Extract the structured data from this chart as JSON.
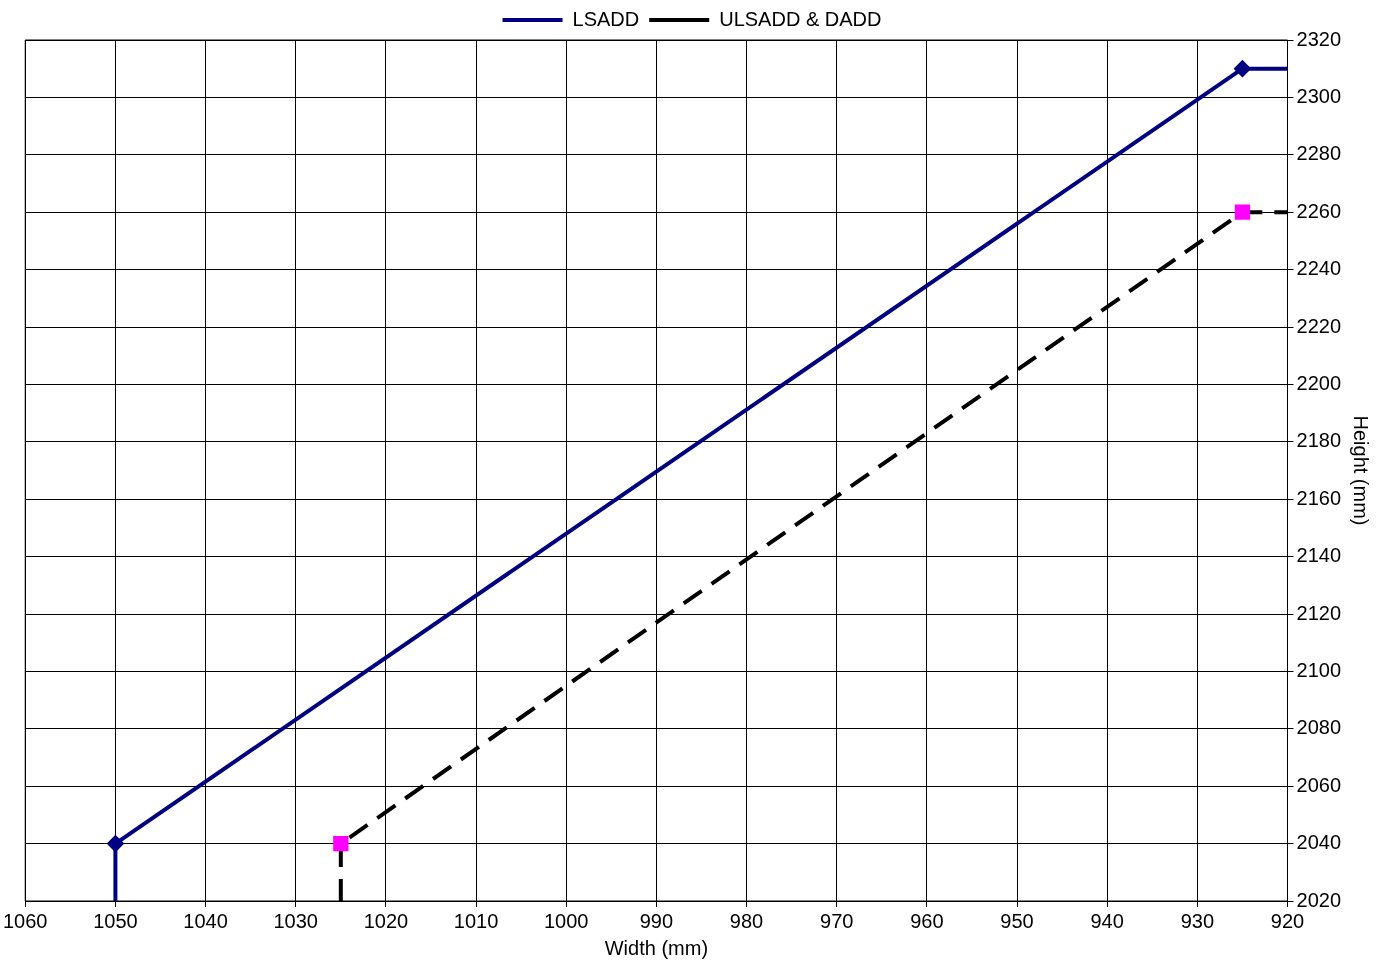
{
  "chart_data": {
    "type": "line",
    "xlabel": "Width (mm)",
    "ylabel": "Height (mm)",
    "xlim": [
      1060,
      920
    ],
    "xticks": [
      1060,
      1050,
      1040,
      1030,
      1020,
      1010,
      1000,
      990,
      980,
      970,
      960,
      950,
      940,
      930,
      920
    ],
    "ylim": [
      2020,
      2320
    ],
    "yticks": [
      2020,
      2040,
      2060,
      2080,
      2100,
      2120,
      2140,
      2160,
      2180,
      2200,
      2220,
      2240,
      2260,
      2280,
      2300,
      2320
    ],
    "grid": true,
    "legend": "top",
    "series": [
      {
        "name": "LSADD",
        "color": "#000080",
        "marker": "diamond",
        "line_style": "solid",
        "x": [
          1050,
          1050,
          925,
          920
        ],
        "values": [
          2020,
          2040,
          2310,
          2310
        ]
      },
      {
        "name": "ULSADD & DADD",
        "color": "#000000",
        "colors": [
          "#ff00ff",
          "#ff00ff",
          "#ff00ff",
          "#ff00ff"
        ],
        "marker": "square",
        "line_style": "dashed",
        "x": [
          1025,
          1025,
          925,
          920
        ],
        "values": [
          2020,
          2040,
          2260,
          2260
        ]
      }
    ]
  }
}
